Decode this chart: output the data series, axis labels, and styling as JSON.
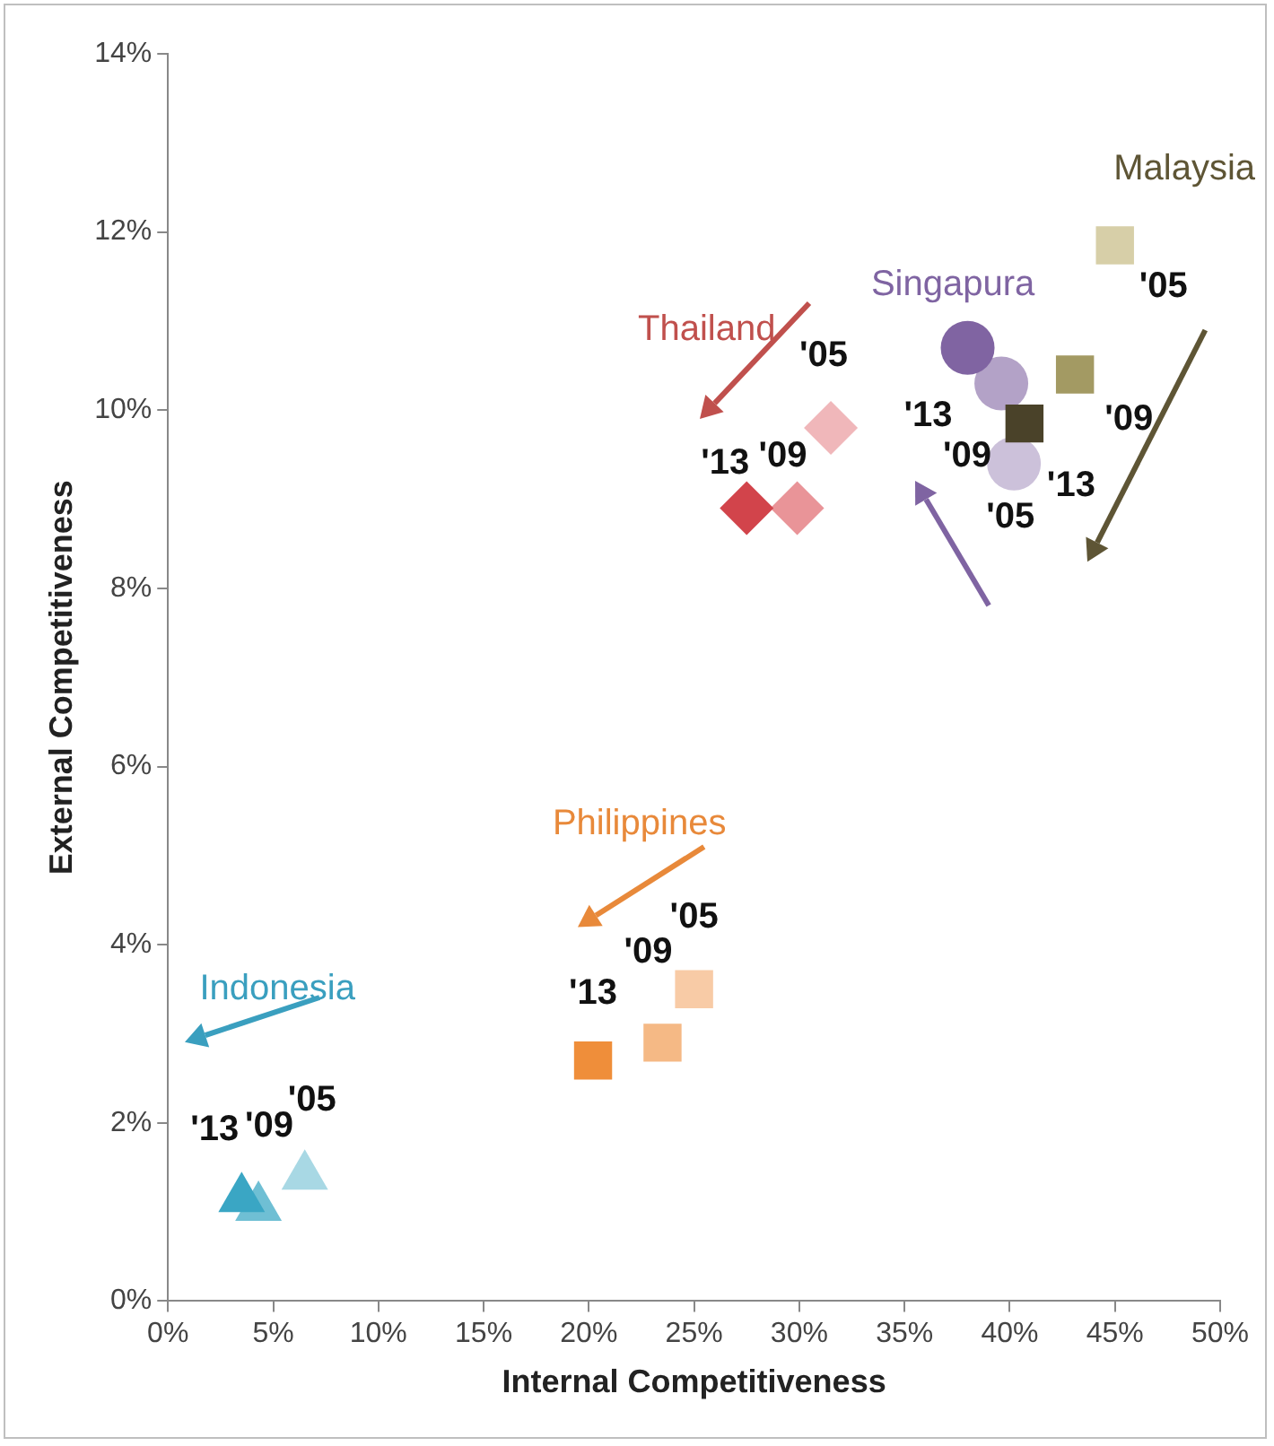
{
  "chart_data": {
    "type": "scatter",
    "xlabel": "Internal Competitiveness",
    "ylabel": "External Competitiveness",
    "xlim": [
      0,
      50
    ],
    "xticks": [
      {
        "value": 0,
        "label": "0%"
      },
      {
        "value": 5,
        "label": "5%"
      },
      {
        "value": 10,
        "label": "10%"
      },
      {
        "value": 15,
        "label": "15%"
      },
      {
        "value": 20,
        "label": "20%"
      },
      {
        "value": 25,
        "label": "25%"
      },
      {
        "value": 30,
        "label": "30%"
      },
      {
        "value": 35,
        "label": "35%"
      },
      {
        "value": 40,
        "label": "40%"
      },
      {
        "value": 45,
        "label": "45%"
      },
      {
        "value": 50,
        "label": "50%"
      }
    ],
    "ylim": [
      0,
      14
    ],
    "yticks": [
      {
        "value": 0,
        "label": "0%"
      },
      {
        "value": 2,
        "label": "2%"
      },
      {
        "value": 4,
        "label": "4%"
      },
      {
        "value": 6,
        "label": "6%"
      },
      {
        "value": 8,
        "label": "8%"
      },
      {
        "value": 10,
        "label": "10%"
      },
      {
        "value": 12,
        "label": "12%"
      },
      {
        "value": 14,
        "label": "14%"
      }
    ],
    "grid": false,
    "legend": false,
    "annotations": [
      {
        "text": "'05",
        "x": 6.5,
        "y": 1.4
      },
      {
        "text": "'09",
        "x": 4.3,
        "y": 1.05
      },
      {
        "text": "'13",
        "x": 3.5,
        "y": 1.15
      },
      {
        "text": "'05",
        "x": 25,
        "y": 3.5
      },
      {
        "text": "'09",
        "x": 23.5,
        "y": 2.9
      },
      {
        "text": "'13",
        "x": 20.2,
        "y": 2.7
      },
      {
        "text": "'05",
        "x": 31.5,
        "y": 9.8
      },
      {
        "text": "'09",
        "x": 29.9,
        "y": 8.9
      },
      {
        "text": "'13",
        "x": 27.5,
        "y": 8.9
      },
      {
        "text": "'05",
        "x": 40.2,
        "y": 9.4
      },
      {
        "text": "'09",
        "x": 39.6,
        "y": 10.3
      },
      {
        "text": "'13",
        "x": 38,
        "y": 10.7
      },
      {
        "text": "'05",
        "x": 45,
        "y": 11.85
      },
      {
        "text": "'09",
        "x": 43.1,
        "y": 10.4
      },
      {
        "text": "'13",
        "x": 40.7,
        "y": 9.85
      }
    ],
    "series": [
      {
        "name": "Indonesia",
        "color": "#3a9fbf",
        "marker": "triangle",
        "x": [
          6.5,
          4.3,
          3.5
        ],
        "values": [
          1.4,
          1.05,
          1.15
        ],
        "colors": [
          "#a8d8e4",
          "#6fbfd4",
          "#3aa6c4"
        ]
      },
      {
        "name": "Philippines",
        "color": "#e8893a",
        "marker": "square",
        "x": [
          25,
          23.5,
          20.2
        ],
        "values": [
          3.5,
          2.9,
          2.7
        ],
        "colors": [
          "#f8cba6",
          "#f5b985",
          "#ef8e3a"
        ]
      },
      {
        "name": "Thailand",
        "color": "#c0504d",
        "marker": "diamond",
        "x": [
          31.5,
          29.9,
          27.5
        ],
        "values": [
          9.8,
          8.9,
          8.9
        ],
        "colors": [
          "#f0b7ba",
          "#e99498",
          "#d2444b"
        ]
      },
      {
        "name": "Singapura",
        "color": "#7f64a2",
        "marker": "circle",
        "x": [
          40.2,
          39.6,
          38
        ],
        "values": [
          9.4,
          10.3,
          10.7
        ],
        "colors": [
          "#ccc1da",
          "#b3a2c7",
          "#8064a2"
        ]
      },
      {
        "name": "Malaysia",
        "color": "#5e5535",
        "marker": "square",
        "x": [
          45,
          43.1,
          40.7
        ],
        "values": [
          11.85,
          10.4,
          9.85
        ],
        "colors": [
          "#d7cfa8",
          "#a39a63",
          "#4a4229"
        ]
      }
    ]
  }
}
